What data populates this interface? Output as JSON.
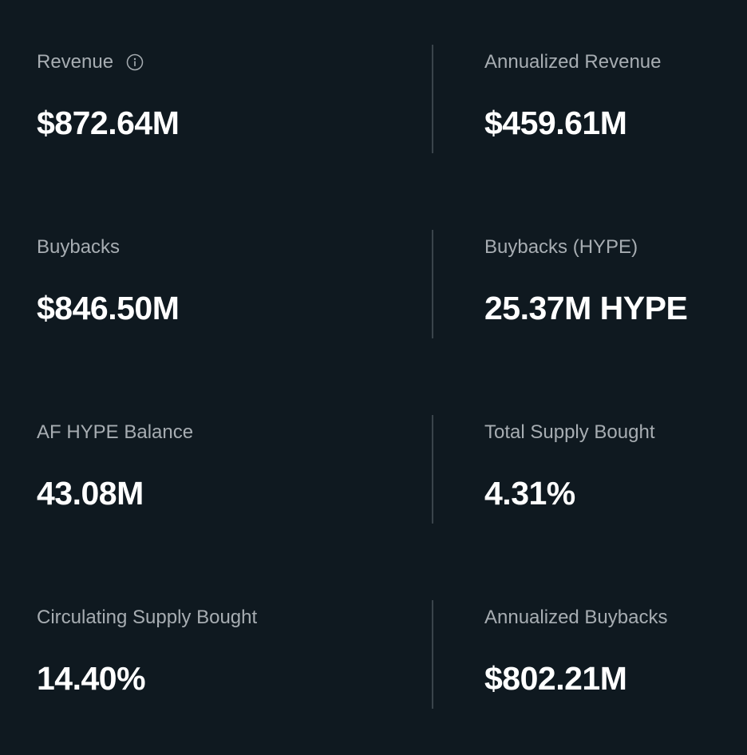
{
  "stats": [
    {
      "label": "Revenue",
      "value": "$872.64M",
      "icon": "info-icon"
    },
    {
      "label": "Annualized Revenue",
      "value": "$459.61M"
    },
    {
      "label": "Buybacks",
      "value": "$846.50M"
    },
    {
      "label": "Buybacks (HYPE)",
      "value": "25.37M HYPE"
    },
    {
      "label": "AF HYPE Balance",
      "value": "43.08M"
    },
    {
      "label": "Total Supply Bought",
      "value": "4.31%"
    },
    {
      "label": "Circulating Supply Bought",
      "value": "14.40%"
    },
    {
      "label": "Annualized Buybacks",
      "value": "$802.21M"
    }
  ],
  "colors": {
    "background": "#0f1920",
    "label": "#a7adb2",
    "value": "#ffffff",
    "divider": "#3a444b"
  }
}
